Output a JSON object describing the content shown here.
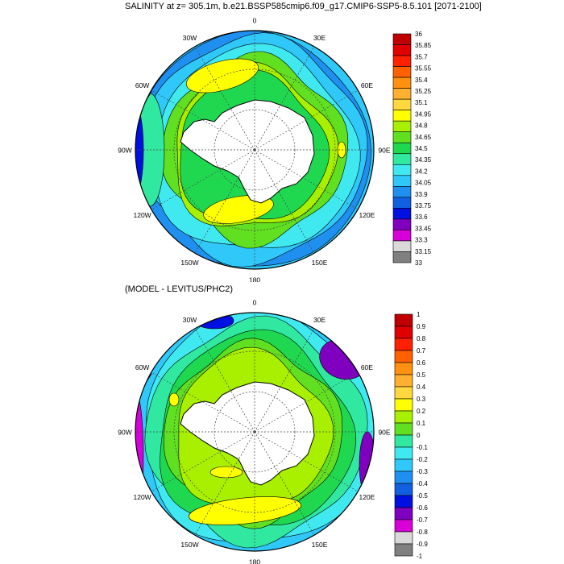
{
  "titles": {
    "top": "SALINITY at z= 305.1m, b.e21.BSSP585cmip6.f09_g17.CMIP6-SSP5-8.5.101 [2071-2100]",
    "bottom": "(MODEL - LEVITUS/PHC2)"
  },
  "longitude_labels": [
    "0",
    "30E",
    "60E",
    "90E",
    "120E",
    "150E",
    "180",
    "150W",
    "120W",
    "90W",
    "60W",
    "30W"
  ],
  "colorbar_colors": [
    "#ffffff",
    "#000000",
    "#808080",
    "#d9d9d9",
    "#d800d8",
    "#8000c0",
    "#0010e0",
    "#1060e0",
    "#2090f0",
    "#30c8f8",
    "#40e8f0",
    "#30e8a0",
    "#20d850",
    "#60e020",
    "#a8f000",
    "#ffff00",
    "#ffd840",
    "#ffb030",
    "#ff9010",
    "#ff6000",
    "#ff2000",
    "#e00000",
    "#c00000"
  ],
  "maps": [
    {
      "id": "salinity",
      "colorbar": {
        "labels": [
          "36",
          "35.85",
          "35.7",
          "35.55",
          "35.4",
          "35.25",
          "35.1",
          "34.95",
          "34.8",
          "34.65",
          "34.5",
          "34.35",
          "34.2",
          "34.05",
          "33.9",
          "33.75",
          "33.6",
          "33.45",
          "33.3",
          "33.15",
          "33"
        ],
        "colors": [
          "#c00000",
          "#e00000",
          "#ff2000",
          "#ff6000",
          "#ff9010",
          "#ffb030",
          "#ffd840",
          "#ffff00",
          "#a8f000",
          "#60e020",
          "#20d850",
          "#30e8a0",
          "#40e8f0",
          "#30c8f8",
          "#2090f0",
          "#1060e0",
          "#0010e0",
          "#8000c0",
          "#d800d8",
          "#d9d9d9",
          "#808080"
        ]
      }
    },
    {
      "id": "difference",
      "colorbar": {
        "labels": [
          "1",
          "0.9",
          "0.8",
          "0.7",
          "0.6",
          "0.5",
          "0.4",
          "0.3",
          "0.2",
          "0.1",
          "0",
          "-0.1",
          "-0.2",
          "-0.3",
          "-0.4",
          "-0.5",
          "-0.6",
          "-0.7",
          "-0.8",
          "-0.9",
          "-1"
        ],
        "colors": [
          "#c00000",
          "#e00000",
          "#ff2000",
          "#ff6000",
          "#ff9010",
          "#ffb030",
          "#ffd840",
          "#ffff00",
          "#a8f000",
          "#60e020",
          "#30e8a0",
          "#40e8f0",
          "#30c8f8",
          "#2090f0",
          "#1060e0",
          "#0010e0",
          "#8000c0",
          "#d800d8",
          "#d9d9d9",
          "#808080"
        ]
      }
    }
  ]
}
